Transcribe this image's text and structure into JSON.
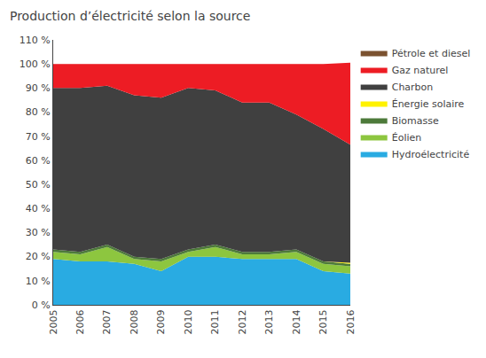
{
  "chart_data": {
    "type": "area",
    "stacked": true,
    "title": "Production d’électricité selon la source",
    "x": [
      2005,
      2006,
      2007,
      2008,
      2009,
      2010,
      2011,
      2012,
      2013,
      2014,
      2015,
      2016
    ],
    "xlim": [
      2005,
      2016
    ],
    "xticks": [
      2005,
      2006,
      2007,
      2008,
      2009,
      2010,
      2011,
      2012,
      2013,
      2014,
      2015,
      2016
    ],
    "ylim": [
      0,
      110
    ],
    "yticks": [
      {
        "value": 0,
        "label": "0 %"
      },
      {
        "value": 10,
        "label": "10 %"
      },
      {
        "value": 20,
        "label": "20 %"
      },
      {
        "value": 30,
        "label": "30 %"
      },
      {
        "value": 40,
        "label": "40 %"
      },
      {
        "value": 50,
        "label": "50 %"
      },
      {
        "value": 60,
        "label": "60 %"
      },
      {
        "value": 70,
        "label": "70 %"
      },
      {
        "value": 80,
        "label": "80 %"
      },
      {
        "value": 90,
        "label": "90 %"
      },
      {
        "value": 100,
        "label": "100 %"
      },
      {
        "value": 110,
        "label": "110 %"
      }
    ],
    "grid": "y",
    "legend": "right",
    "series": [
      {
        "name": "Hydroélectricité",
        "color": "#29ABE2",
        "values": [
          19,
          18,
          18,
          17,
          14,
          20,
          20,
          19,
          19,
          19,
          14,
          13
        ]
      },
      {
        "name": "Éolien",
        "color": "#8DC63F",
        "values": [
          3,
          3,
          6,
          2,
          4,
          2,
          4,
          2,
          2,
          3,
          3,
          3
        ]
      },
      {
        "name": "Biomasse",
        "color": "#4D7A3A",
        "values": [
          1,
          1,
          1,
          1,
          1,
          1,
          1,
          1,
          1,
          1,
          1,
          1
        ]
      },
      {
        "name": "Énergie solaire",
        "color": "#FFF200",
        "values": [
          0,
          0,
          0,
          0,
          0,
          0,
          0,
          0,
          0,
          0,
          0,
          0.5
        ]
      },
      {
        "name": "Charbon",
        "color": "#404040",
        "values": [
          67,
          68,
          66,
          67,
          67,
          67,
          64,
          62,
          62,
          56,
          55,
          49
        ]
      },
      {
        "name": "Gaz naturel",
        "color": "#ED1C24",
        "values": [
          10,
          10,
          9,
          13,
          14,
          10,
          11,
          16,
          16,
          21,
          27,
          34
        ]
      },
      {
        "name": "Pétrole et diesel",
        "color": "#7B5230",
        "values": [
          0,
          0,
          0,
          0,
          0,
          0,
          0,
          0,
          0,
          0,
          0,
          0
        ]
      }
    ]
  }
}
